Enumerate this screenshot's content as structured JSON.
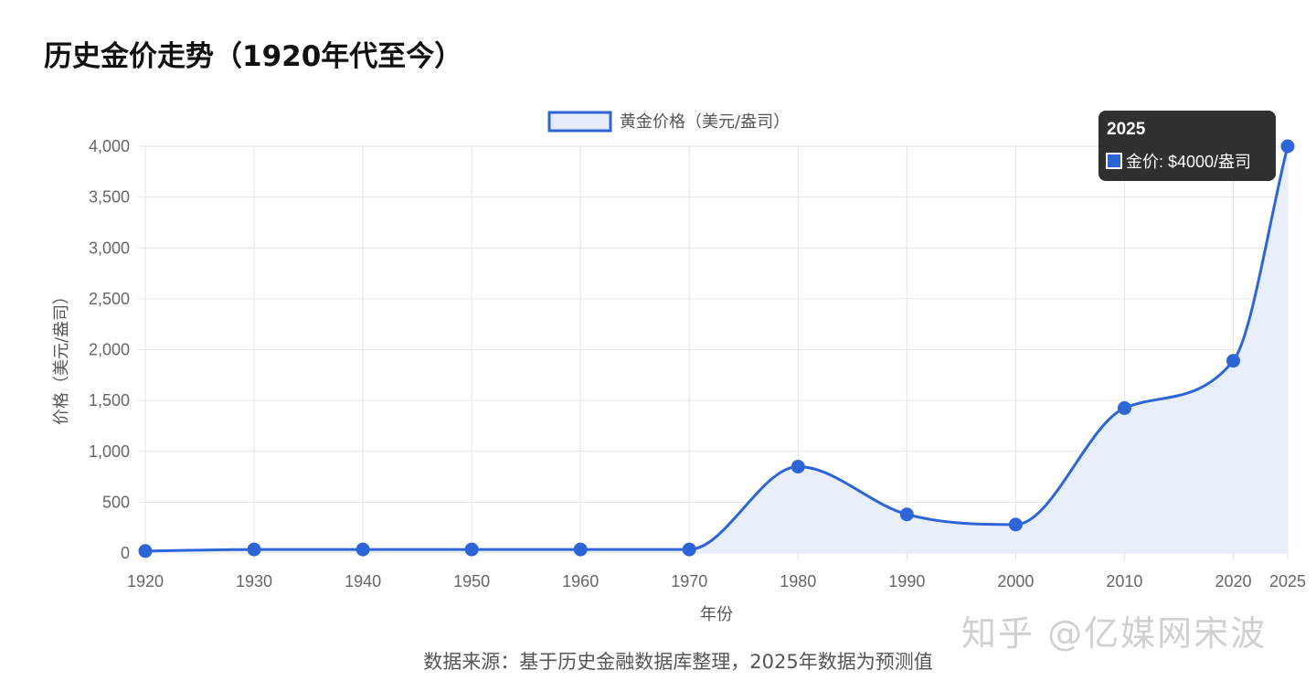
{
  "page_title": "历史金价走势（1920年代至今）",
  "source_note": "数据来源：基于历史金融数据库整理，2025年数据为预测值",
  "watermark": "知乎 @亿媒网宋波",
  "tooltip": {
    "title": "2025",
    "series_label": "金价",
    "value_text": ": $4000/盎司"
  },
  "colors": {
    "line": "#2e65d6",
    "fill": "#e6ecfa",
    "grid": "#e4e4e4",
    "axis_text": "#666666"
  },
  "chart_data": {
    "type": "line",
    "title": "",
    "xlabel": "年份",
    "ylabel": "价格（美元/盎司）",
    "x": [
      1920,
      1930,
      1940,
      1950,
      1960,
      1970,
      1980,
      1990,
      2000,
      2010,
      2020,
      2025
    ],
    "x_tick_labels": [
      "1920",
      "1930",
      "1940",
      "1950",
      "1960",
      "1970",
      "1980",
      "1990",
      "2000",
      "2010",
      "2020",
      "2025"
    ],
    "ylim": [
      0,
      4000
    ],
    "y_ticks": [
      0,
      500,
      1000,
      1500,
      2000,
      2500,
      3000,
      3500,
      4000
    ],
    "y_tick_labels": [
      "0",
      "500",
      "1,000",
      "1,500",
      "2,000",
      "2,500",
      "3,000",
      "3,500",
      "4,000"
    ],
    "grid": true,
    "legend_position": "top",
    "series": [
      {
        "name": "黄金价格（美元/盎司）",
        "values": [
          20,
          35,
          35,
          35,
          35,
          35,
          850,
          380,
          280,
          1425,
          1890,
          4000
        ],
        "fill": true,
        "smooth": true
      }
    ]
  }
}
